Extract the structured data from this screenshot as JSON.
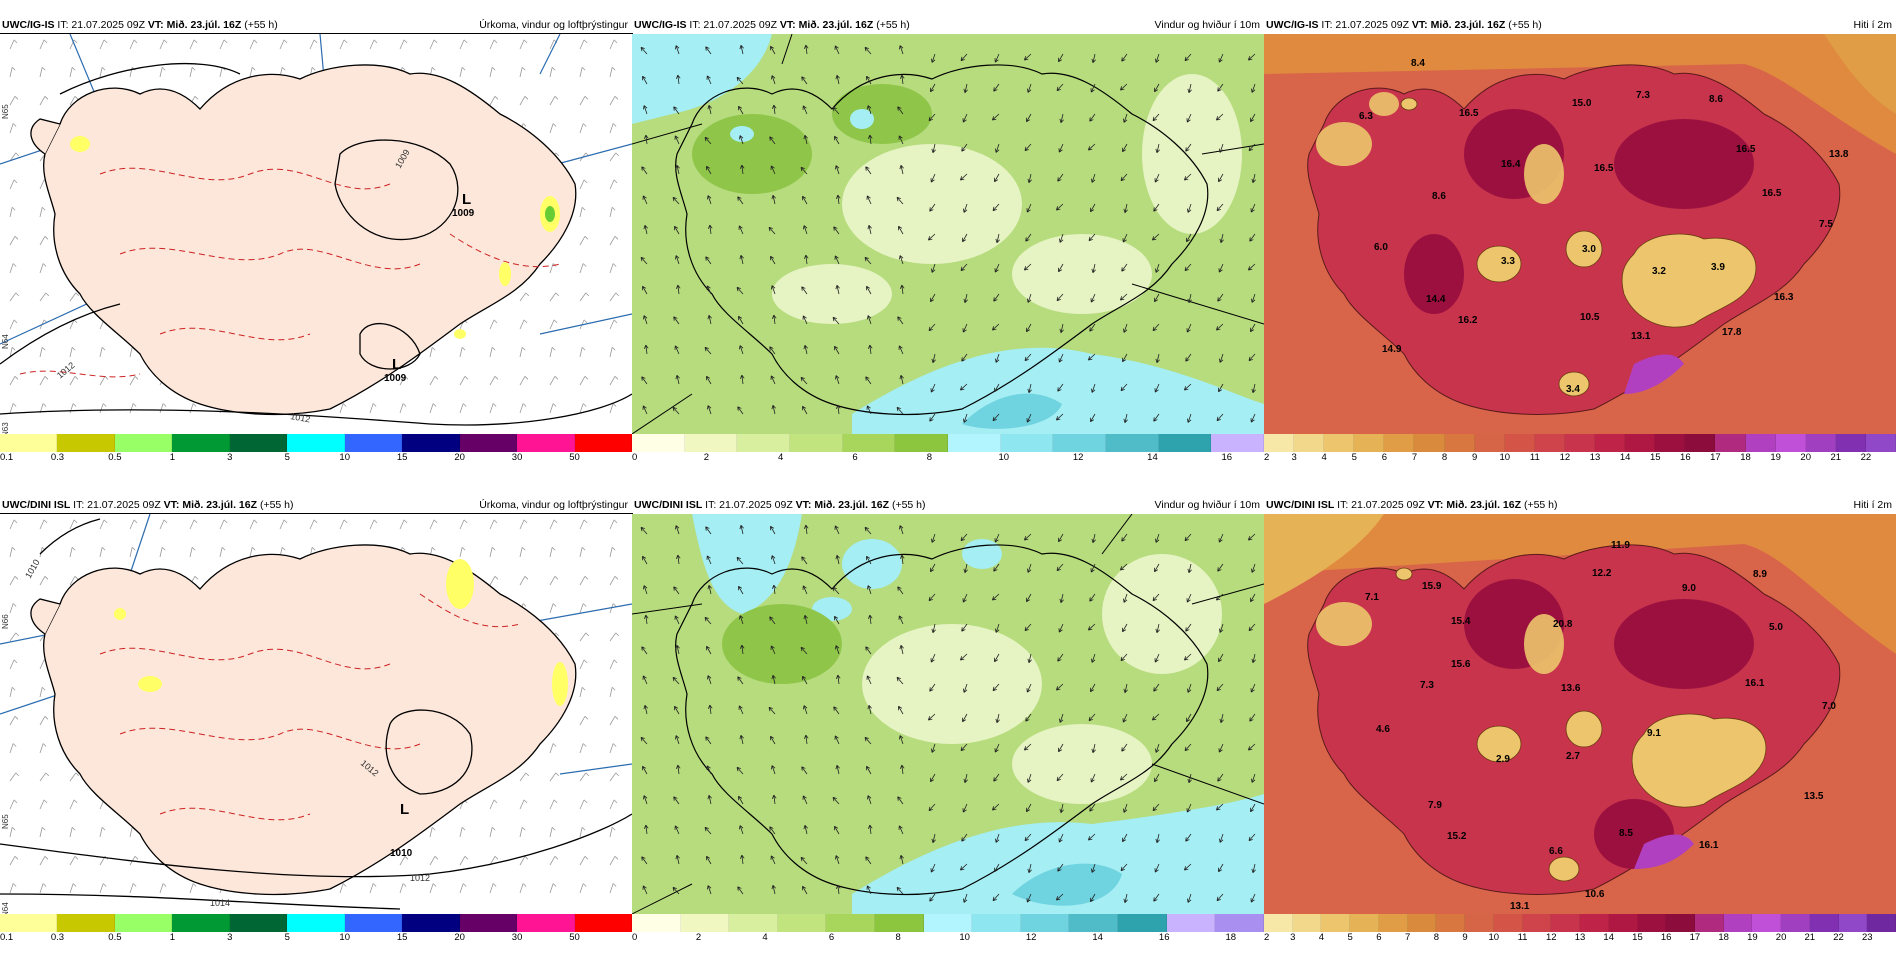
{
  "panels": [
    {
      "model": "UWC/IG-IS",
      "it": "IT: 21.07.2025 09Z",
      "vt_label": "VT:",
      "vt": "Mið. 23.júl. 16Z",
      "lead": "(+55 h)",
      "title": "Úrkoma, vindur og loftþrýstingur",
      "legend": {
        "colors": [
          "#ffff99",
          "#c8c800",
          "#99ff66",
          "#009933",
          "#006633",
          "#00ffff",
          "#3366ff",
          "#000080",
          "#660066",
          "#ff1493",
          "#ff0000"
        ],
        "ticks": [
          "0.1",
          "0.3",
          "0.5",
          "1",
          "3",
          "5",
          "10",
          "15",
          "20",
          "30",
          "50"
        ]
      },
      "lows": [
        {
          "symbol": "L",
          "value": "1009"
        },
        {
          "symbol": "L",
          "value": "1009"
        }
      ],
      "isobar_labels": [
        "1012",
        "1012",
        "1009"
      ],
      "lat_labels": [
        "N65",
        "N64",
        "N63"
      ]
    },
    {
      "model": "UWC/IG-IS",
      "it": "IT: 21.07.2025 09Z",
      "vt_label": "VT:",
      "vt": "Mið. 23.júl. 16Z",
      "lead": "(+55 h)",
      "title": "Vindur og hviður í 10m",
      "legend": {
        "colors": [
          "#ffffe5",
          "#f0f7c0",
          "#d9efa0",
          "#c2e47e",
          "#a8d65c",
          "#8cc63f",
          "#b3f5ff",
          "#8ee7f0",
          "#6fd3e0",
          "#4fbcc8",
          "#2fa3ad",
          "#c9b3ff"
        ],
        "ticks": [
          "0",
          "2",
          "4",
          "6",
          "8",
          "10",
          "12",
          "14",
          "16"
        ]
      }
    },
    {
      "model": "UWC/IG-IS",
      "it": "IT: 21.07.2025 09Z",
      "vt_label": "VT:",
      "vt": "Mið. 23.júl. 16Z",
      "lead": "(+55 h)",
      "title": "Hiti í 2m",
      "legend": {
        "colors": [
          "#f8e8a8",
          "#f2d88a",
          "#ecc56c",
          "#e6b256",
          "#e09d46",
          "#da8a3c",
          "#d87740",
          "#d66446",
          "#d45448",
          "#ce444a",
          "#c8344c",
          "#bf2448",
          "#b01844",
          "#9c1040",
          "#8c0c3c",
          "#b02a80",
          "#b040c0",
          "#c050d8",
          "#a040c0",
          "#8030b0",
          "#9048c8"
        ],
        "ticks": [
          "2",
          "3",
          "4",
          "5",
          "6",
          "7",
          "8",
          "9",
          "10",
          "11",
          "12",
          "13",
          "14",
          "15",
          "16",
          "17",
          "18",
          "19",
          "20",
          "21",
          "22"
        ]
      },
      "values": [
        "8.4",
        "6.3",
        "16.5",
        "15.0",
        "7.3",
        "8.6",
        "16.4",
        "16.5",
        "16.5",
        "13.8",
        "8.6",
        "6.0",
        "3.3",
        "3.0",
        "3.2",
        "3.9",
        "16.5",
        "7.5",
        "14.4",
        "16.2",
        "10.5",
        "16.3",
        "13.1",
        "17.8",
        "14.9",
        "3.4"
      ]
    },
    {
      "model": "UWC/DINI ISL",
      "it": "IT: 21.07.2025 09Z",
      "vt_label": "VT:",
      "vt": "Mið. 23.júl. 16Z",
      "lead": "(+55 h)",
      "title": "Úrkoma, vindur og loftþrýstingur",
      "legend": {
        "colors": [
          "#ffff99",
          "#c8c800",
          "#99ff66",
          "#009933",
          "#006633",
          "#00ffff",
          "#3366ff",
          "#000080",
          "#660066",
          "#ff1493",
          "#ff0000"
        ],
        "ticks": [
          "0.1",
          "0.3",
          "0.5",
          "1",
          "3",
          "5",
          "10",
          "15",
          "20",
          "30",
          "50"
        ]
      },
      "lows": [
        {
          "symbol": "L",
          "value": "1010"
        }
      ],
      "isobar_labels": [
        "1010",
        "1012",
        "1012",
        "1014"
      ],
      "lat_labels": [
        "N66",
        "N65",
        "N64"
      ]
    },
    {
      "model": "UWC/DINI ISL",
      "it": "IT: 21.07.2025 09Z",
      "vt_label": "VT:",
      "vt": "Mið. 23.júl. 16Z",
      "lead": "(+55 h)",
      "title": "Vindur og hviður í 10m",
      "legend": {
        "colors": [
          "#ffffe5",
          "#f0f7c0",
          "#d9efa0",
          "#c2e47e",
          "#a8d65c",
          "#8cc63f",
          "#b3f5ff",
          "#8ee7f0",
          "#6fd3e0",
          "#4fbcc8",
          "#2fa3ad",
          "#c9b3ff",
          "#a88ff0"
        ],
        "ticks": [
          "0",
          "2",
          "4",
          "6",
          "8",
          "10",
          "12",
          "14",
          "16",
          "18"
        ]
      }
    },
    {
      "model": "UWC/DINI ISL",
      "it": "IT: 21.07.2025 09Z",
      "vt_label": "VT:",
      "vt": "Mið. 23.júl. 16Z",
      "lead": "(+55 h)",
      "title": "Hiti í 2m",
      "legend": {
        "colors": [
          "#f8e8a8",
          "#f2d88a",
          "#ecc56c",
          "#e6b256",
          "#e09d46",
          "#da8a3c",
          "#d87740",
          "#d66446",
          "#d45448",
          "#ce444a",
          "#c8344c",
          "#bf2448",
          "#b01844",
          "#9c1040",
          "#8c0c3c",
          "#b02a80",
          "#b040c0",
          "#c050d8",
          "#a040c0",
          "#8030b0",
          "#9048c8",
          "#7028a0"
        ],
        "ticks": [
          "2",
          "3",
          "4",
          "5",
          "6",
          "7",
          "8",
          "9",
          "10",
          "11",
          "12",
          "13",
          "14",
          "15",
          "16",
          "17",
          "18",
          "19",
          "20",
          "21",
          "22",
          "23"
        ]
      },
      "values": [
        "11.9",
        "7.1",
        "15.9",
        "12.2",
        "9.0",
        "8.9",
        "15.4",
        "20.8",
        "15.6",
        "5.0",
        "7.3",
        "13.6",
        "16.1",
        "7.0",
        "4.6",
        "9.1",
        "2.9",
        "2.7",
        "7.9",
        "13.5",
        "15.2",
        "8.5",
        "16.1",
        "6.6",
        "10.6",
        "13.1"
      ]
    }
  ]
}
